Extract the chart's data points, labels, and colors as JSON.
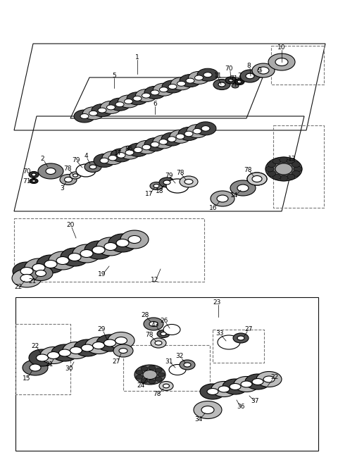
{
  "bg": "#ffffff",
  "lc": "#111111",
  "dc": "#777777",
  "fs": 6.5
}
